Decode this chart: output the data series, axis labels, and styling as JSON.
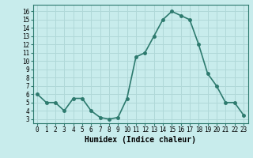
{
  "x": [
    0,
    1,
    2,
    3,
    4,
    5,
    6,
    7,
    8,
    9,
    10,
    11,
    12,
    13,
    14,
    15,
    16,
    17,
    18,
    19,
    20,
    21,
    22,
    23
  ],
  "y": [
    6.0,
    5.0,
    5.0,
    4.0,
    5.5,
    5.5,
    4.0,
    3.2,
    3.0,
    3.2,
    5.5,
    10.5,
    11.0,
    13.0,
    15.0,
    16.0,
    15.5,
    15.0,
    12.0,
    8.5,
    7.0,
    5.0,
    5.0,
    3.5
  ],
  "line_color": "#2d7a6e",
  "marker": "o",
  "marker_size": 2.5,
  "xlabel": "Humidex (Indice chaleur)",
  "xlim": [
    -0.5,
    23.5
  ],
  "ylim": [
    2.5,
    16.8
  ],
  "yticks": [
    3,
    4,
    5,
    6,
    7,
    8,
    9,
    10,
    11,
    12,
    13,
    14,
    15,
    16
  ],
  "xticks": [
    0,
    1,
    2,
    3,
    4,
    5,
    6,
    7,
    8,
    9,
    10,
    11,
    12,
    13,
    14,
    15,
    16,
    17,
    18,
    19,
    20,
    21,
    22,
    23
  ],
  "bg_color": "#c8ecec",
  "grid_color": "#b0d8d8",
  "tick_fontsize": 5.5,
  "xlabel_fontsize": 7,
  "line_width": 1.2
}
